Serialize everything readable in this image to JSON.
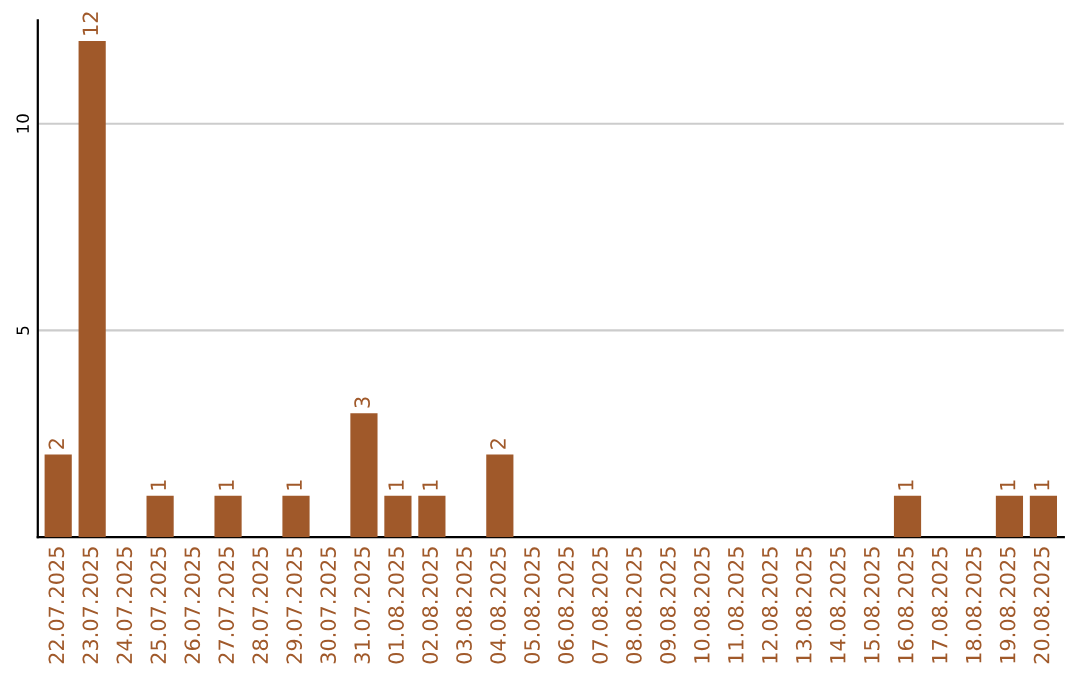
{
  "chart_data": {
    "type": "bar",
    "categories": [
      "22.07.2025",
      "23.07.2025",
      "24.07.2025",
      "25.07.2025",
      "26.07.2025",
      "27.07.2025",
      "28.07.2025",
      "29.07.2025",
      "30.07.2025",
      "31.07.2025",
      "01.08.2025",
      "02.08.2025",
      "03.08.2025",
      "04.08.2025",
      "05.08.2025",
      "06.08.2025",
      "07.08.2025",
      "08.08.2025",
      "09.08.2025",
      "10.08.2025",
      "11.08.2025",
      "12.08.2025",
      "13.08.2025",
      "14.08.2025",
      "15.08.2025",
      "16.08.2025",
      "17.08.2025",
      "18.08.2025",
      "19.08.2025",
      "20.08.2025"
    ],
    "values": [
      2,
      12,
      0,
      1,
      0,
      1,
      0,
      1,
      0,
      3,
      1,
      1,
      0,
      2,
      0,
      0,
      0,
      0,
      0,
      0,
      0,
      0,
      0,
      0,
      0,
      1,
      0,
      0,
      1,
      1
    ],
    "value_labels": [
      "2",
      "12",
      null,
      "1",
      null,
      "1",
      null,
      "1",
      null,
      "3",
      "1",
      "1",
      null,
      "2",
      null,
      null,
      null,
      null,
      null,
      null,
      null,
      null,
      null,
      null,
      null,
      "1",
      null,
      null,
      "1",
      "1"
    ],
    "color": "#a0592a",
    "ylim": [
      0,
      12.5
    ],
    "yticks": [
      5,
      10
    ],
    "grid": "y"
  }
}
